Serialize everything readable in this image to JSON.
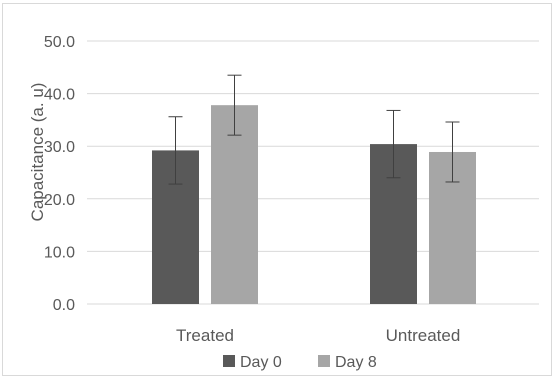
{
  "chart_data": {
    "type": "bar",
    "categories": [
      "Treated",
      "Untreated"
    ],
    "series": [
      {
        "name": "Day 0",
        "values": [
          29.2,
          30.4
        ],
        "error": [
          6.4,
          6.4
        ],
        "color": "#595959"
      },
      {
        "name": "Day 8",
        "values": [
          37.8,
          28.9
        ],
        "error": [
          5.7,
          5.7
        ],
        "color": "#a6a6a6"
      }
    ],
    "ylabel": "Capacitance (a. u)",
    "ylim": [
      0,
      50
    ],
    "yticks": [
      "0.0",
      "10.0",
      "20.0",
      "30.0",
      "40.0",
      "50.0"
    ],
    "grid": true,
    "legend": "bottom"
  }
}
